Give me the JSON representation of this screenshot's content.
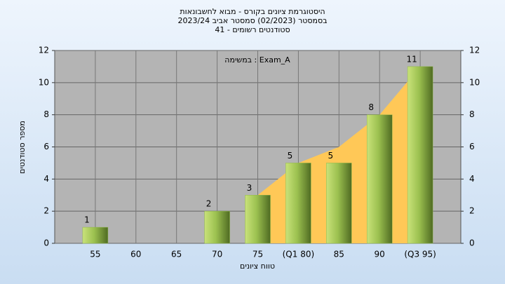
{
  "chart_data": {
    "type": "bar",
    "title": "היסטוגרמת ציונים בקורס - מבוא לחשבונאות",
    "subtitle": "בסמסטר  (02/2023)  סמסטר אביב 2023/24",
    "subtitle2": "סטודנטים רשומים - 41",
    "annotation": "במשימה : Exam_A",
    "x_label": "טווח ציונים",
    "y_label": "מספר סטודנטים",
    "categories": [
      "55",
      "60",
      "65",
      "70",
      "75",
      "(Q1 80)",
      "85",
      "90",
      "(Q3 95)"
    ],
    "series": [
      {
        "type": "area",
        "color": "#ffc857",
        "values": [
          null,
          null,
          null,
          null,
          3,
          5,
          6,
          8,
          11
        ]
      },
      {
        "type": "bar",
        "color": "#8fb74a",
        "values": [
          1,
          0,
          0,
          2,
          3,
          5,
          5,
          8,
          11
        ]
      }
    ],
    "ylim": [
      0,
      12
    ],
    "yticks": [
      0,
      2,
      4,
      6,
      8,
      10,
      12
    ],
    "grid": true
  }
}
